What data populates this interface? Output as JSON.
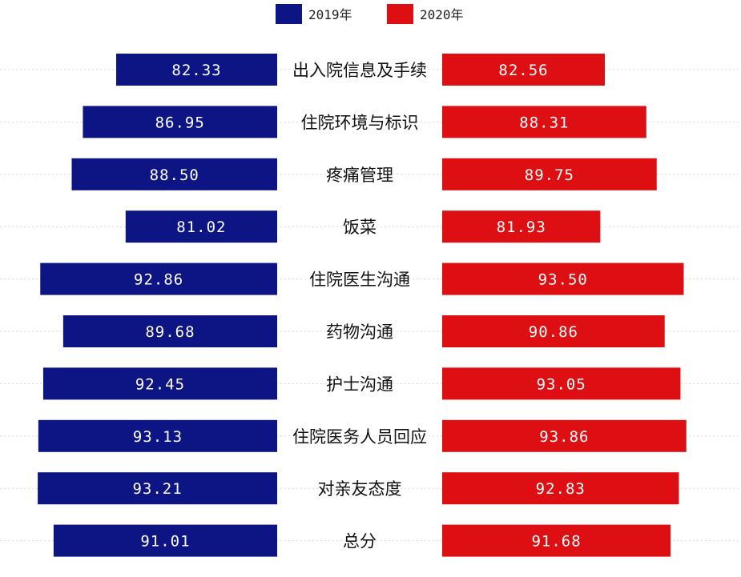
{
  "colors": {
    "series_2019": "#0d1585",
    "series_2020": "#dd0f12"
  },
  "chart_data": {
    "type": "bar",
    "orientation": "horizontal-butterfly",
    "title": "",
    "xlabel": "",
    "ylabel": "",
    "legend": "top-center",
    "grid": true,
    "categories": [
      "出入院信息及手续",
      "住院环境与标识",
      "疼痛管理",
      "饭菜",
      "住院医生沟通",
      "药物沟通",
      "护士沟通",
      "住院医务人员回应",
      "对亲友态度",
      "总分"
    ],
    "series": [
      {
        "name": "2019年",
        "side": "left",
        "values": [
          82.33,
          86.95,
          88.5,
          81.02,
          92.86,
          89.68,
          92.45,
          93.13,
          93.21,
          91.01
        ],
        "labels": [
          "82.33",
          "86.95",
          "88.50",
          "81.02",
          "92.86",
          "89.68",
          "92.45",
          "93.13",
          "93.21",
          "91.01"
        ]
      },
      {
        "name": "2020年",
        "side": "right",
        "values": [
          82.56,
          88.31,
          89.75,
          81.93,
          93.5,
          90.86,
          93.05,
          93.86,
          92.83,
          91.68
        ],
        "labels": [
          "82.56",
          "88.31",
          "89.75",
          "81.93",
          "93.50",
          "90.86",
          "93.05",
          "93.86",
          "92.83",
          "91.68"
        ]
      }
    ],
    "xlim": [
      60,
      95
    ]
  }
}
